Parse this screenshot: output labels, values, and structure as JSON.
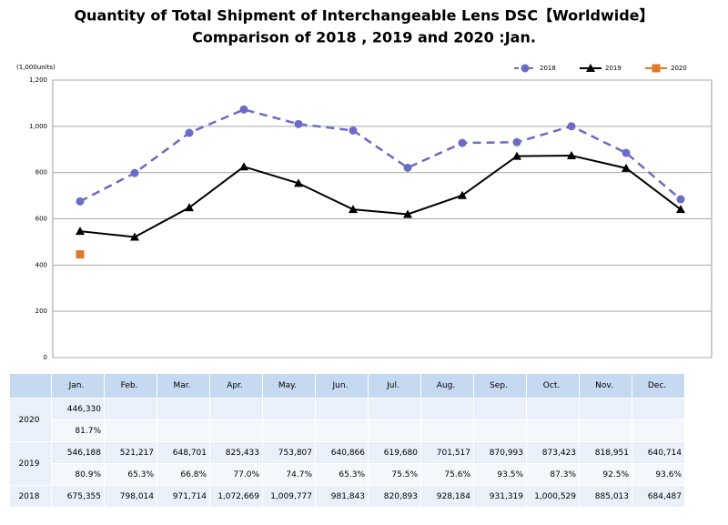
{
  "chart_data": {
    "type": "line",
    "title": "Quantity of Total Shipment of Interchangeable Lens DSC【Worldwide】",
    "subtitle": "Comparison of 2018 , 2019 and 2020 :Jan.",
    "y_label": "(1,000units)",
    "ylim": [
      0,
      1200
    ],
    "yticks": [
      0,
      200,
      400,
      600,
      800,
      {
        "value": 1000,
        "label": "1,000"
      },
      {
        "value": 1200,
        "label": "1,200"
      }
    ],
    "grid": true,
    "legend": "top-right",
    "series": [
      {
        "name": "2018",
        "color": "#6b6bc8",
        "dash": true,
        "marker": "circle",
        "values": [
          675.355,
          798.014,
          971.714,
          1072.669,
          1009.777,
          981.843,
          820.893,
          928.184,
          931.319,
          1000.529,
          885.013,
          684.487
        ]
      },
      {
        "name": "2019",
        "color": "#000000",
        "dash": false,
        "marker": "triangle",
        "values": [
          546.188,
          521.217,
          648.701,
          825.433,
          753.807,
          640.866,
          619.68,
          701.517,
          870.993,
          873.423,
          818.951,
          640.714
        ]
      },
      {
        "name": "2020",
        "color": "#e07b25",
        "dash": false,
        "marker": "square",
        "values": [
          446.33,
          null,
          null,
          null,
          null,
          null,
          null,
          null,
          null,
          null,
          null,
          null
        ]
      }
    ]
  },
  "table": {
    "header": [
      "Jan.",
      "Feb.",
      "Mar.",
      "Apr.",
      "May.",
      "Jun.",
      "Jul.",
      "Aug.",
      "Sep.",
      "Oct.",
      "Nov.",
      "Dec."
    ],
    "rows": [
      {
        "year": "2020",
        "values": [
          "446,330",
          null,
          null,
          null,
          null,
          null,
          null,
          null,
          null,
          null,
          null,
          null
        ],
        "ratios": [
          "81.7%",
          null,
          null,
          null,
          null,
          null,
          null,
          null,
          null,
          null,
          null,
          null
        ]
      },
      {
        "year": "2019",
        "values": [
          "546,188",
          "521,217",
          "648,701",
          "825,433",
          "753,807",
          "640,866",
          "619,680",
          "701,517",
          "870,993",
          "873,423",
          "818,951",
          "640,714"
        ],
        "ratios": [
          "80.9%",
          "65.3%",
          "66.8%",
          "77.0%",
          "74.7%",
          "65.3%",
          "75.5%",
          "75.6%",
          "93.5%",
          "87.3%",
          "92.5%",
          "93.6%"
        ]
      },
      {
        "year": "2018",
        "values": [
          "675,355",
          "798,014",
          "971,714",
          "1,072,669",
          "1,009,777",
          "981,843",
          "820,893",
          "928,184",
          "931,319",
          "1,000,529",
          "885,013",
          "684,487"
        ]
      }
    ]
  }
}
